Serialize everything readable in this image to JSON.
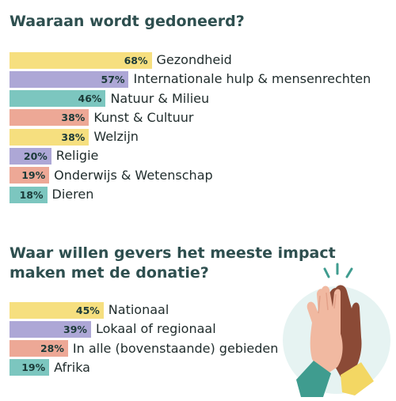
{
  "sections": [
    {
      "title": "Waaraan wordt gedoneerd?",
      "chart_data": {
        "type": "bar",
        "orientation": "horizontal",
        "categories": [
          "Gezondheid",
          "Internationale hulp & mensenrechten",
          "Natuur & Milieu",
          "Kunst & Cultuur",
          "Welzijn",
          "Religie",
          "Onderwijs & Wetenschap",
          "Dieren"
        ],
        "values": [
          68,
          57,
          46,
          38,
          38,
          20,
          19,
          18
        ],
        "value_labels": [
          "68%",
          "57%",
          "46%",
          "38%",
          "38%",
          "20%",
          "19%",
          "18%"
        ],
        "colors": [
          "#f6df7f",
          "#ada7d6",
          "#7cc6bf",
          "#eda896",
          "#f6df7f",
          "#ada7d6",
          "#eda896",
          "#7cc6bf"
        ],
        "unit": "%"
      }
    },
    {
      "title": "Waar willen gevers het meeste impact maken met de donatie?",
      "chart_data": {
        "type": "bar",
        "orientation": "horizontal",
        "categories": [
          "Nationaal",
          "Lokaal of regionaal",
          "In alle (bovenstaande) gebieden",
          "Afrika"
        ],
        "values": [
          45,
          39,
          28,
          19
        ],
        "value_labels": [
          "45%",
          "39%",
          "28%",
          "19%"
        ],
        "colors": [
          "#f6df7f",
          "#ada7d6",
          "#eda896",
          "#7cc6bf"
        ],
        "unit": "%"
      }
    }
  ],
  "illustration": {
    "icon": "high-five-icon",
    "colors": {
      "circle": "#e6f3f2",
      "hand_light": "#f1b9a1",
      "hand_dark": "#8b4a36",
      "sleeve_teal": "#3f9c8f",
      "sleeve_yellow": "#f3d763",
      "sparks": "#3f9c8f"
    }
  }
}
